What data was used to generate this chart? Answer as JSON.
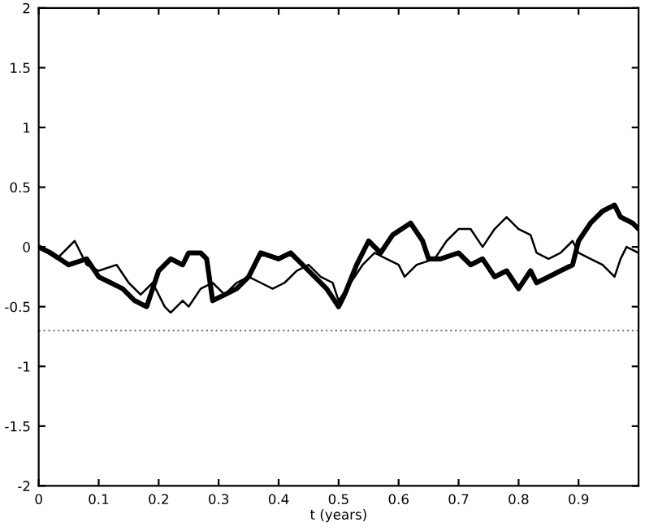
{
  "chart_data": {
    "type": "line",
    "xlabel": "t (years)",
    "xlim": [
      0,
      1
    ],
    "xticks": [
      0,
      0.1,
      0.2,
      0.3,
      0.4,
      0.5,
      0.6,
      0.7,
      0.8,
      0.9
    ],
    "ylim": [
      -2,
      2
    ],
    "yticks": [
      -2,
      -1.5,
      -1,
      -0.5,
      0,
      0.5,
      1,
      1.5,
      2
    ],
    "grid": false,
    "legend": false,
    "series": [
      {
        "color": "#000000",
        "x": [
          0,
          0.02,
          0.05,
          0.08,
          0.1,
          0.12,
          0.14,
          0.16,
          0.18,
          0.19,
          0.2,
          0.22,
          0.24,
          0.25,
          0.27,
          0.28,
          0.29,
          0.31,
          0.33,
          0.35,
          0.37,
          0.4,
          0.42,
          0.44,
          0.46,
          0.48,
          0.5,
          0.51,
          0.53,
          0.55,
          0.57,
          0.59,
          0.62,
          0.64,
          0.65,
          0.67,
          0.7,
          0.72,
          0.74,
          0.76,
          0.78,
          0.8,
          0.82,
          0.83,
          0.85,
          0.87,
          0.89,
          0.9,
          0.92,
          0.94,
          0.96,
          0.97,
          0.99,
          1.0
        ],
        "values": [
          0,
          -0.05,
          -0.15,
          -0.1,
          -0.25,
          -0.3,
          -0.35,
          -0.45,
          -0.5,
          -0.35,
          -0.2,
          -0.1,
          -0.15,
          -0.05,
          -0.05,
          -0.1,
          -0.45,
          -0.4,
          -0.35,
          -0.25,
          -0.05,
          -0.1,
          -0.05,
          -0.15,
          -0.25,
          -0.35,
          -0.5,
          -0.4,
          -0.15,
          0.05,
          -0.05,
          0.1,
          0.2,
          0.05,
          -0.1,
          -0.1,
          -0.05,
          -0.15,
          -0.1,
          -0.25,
          -0.2,
          -0.35,
          -0.2,
          -0.3,
          -0.25,
          -0.2,
          -0.15,
          0.05,
          0.2,
          0.3,
          0.35,
          0.25,
          0.2,
          0.15
        ]
      },
      {
        "color": "#000000",
        "x": [
          0,
          0.03,
          0.06,
          0.08,
          0.1,
          0.13,
          0.15,
          0.17,
          0.19,
          0.21,
          0.22,
          0.24,
          0.25,
          0.27,
          0.29,
          0.31,
          0.33,
          0.35,
          0.37,
          0.39,
          0.41,
          0.43,
          0.45,
          0.47,
          0.49,
          0.5,
          0.52,
          0.54,
          0.56,
          0.58,
          0.6,
          0.61,
          0.63,
          0.66,
          0.68,
          0.7,
          0.72,
          0.74,
          0.76,
          0.78,
          0.8,
          0.82,
          0.83,
          0.85,
          0.87,
          0.89,
          0.9,
          0.92,
          0.94,
          0.96,
          0.97,
          0.98,
          1.0
        ],
        "values": [
          0,
          -0.1,
          0.05,
          -0.15,
          -0.2,
          -0.15,
          -0.3,
          -0.4,
          -0.3,
          -0.5,
          -0.55,
          -0.45,
          -0.5,
          -0.35,
          -0.3,
          -0.4,
          -0.3,
          -0.25,
          -0.3,
          -0.35,
          -0.3,
          -0.2,
          -0.15,
          -0.25,
          -0.3,
          -0.45,
          -0.3,
          -0.15,
          -0.05,
          -0.1,
          -0.15,
          -0.25,
          -0.15,
          -0.1,
          0.05,
          0.15,
          0.15,
          0,
          0.15,
          0.25,
          0.15,
          0.1,
          -0.05,
          -0.1,
          -0.05,
          0.05,
          -0.05,
          -0.1,
          -0.15,
          -0.25,
          -0.1,
          0,
          -0.05
        ]
      }
    ],
    "ref_lines": [
      {
        "axis": "y",
        "value": -0.7,
        "line_style": "dotted",
        "color": "#808080"
      }
    ]
  }
}
